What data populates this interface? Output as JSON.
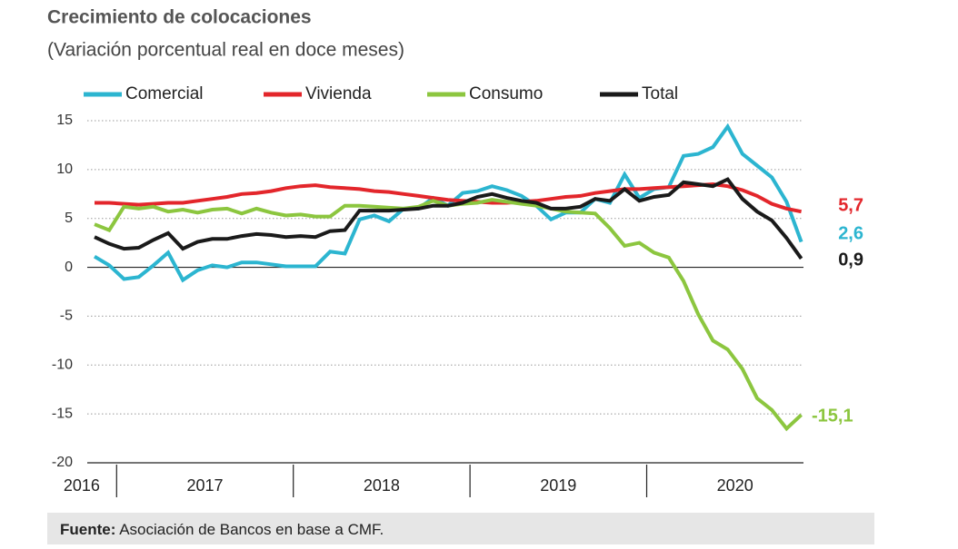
{
  "chart_data": {
    "type": "line",
    "title": "Crecimiento de colocaciones",
    "subtitle": "(Variación porcentual real en doce meses)",
    "categories": [
      "2016",
      null,
      null,
      null,
      null,
      null,
      null,
      null,
      "2017",
      null,
      null,
      null,
      null,
      null,
      null,
      null,
      null,
      null,
      null,
      null,
      "2018",
      null,
      null,
      null,
      null,
      null,
      null,
      null,
      null,
      null,
      null,
      null,
      "2019",
      null,
      null,
      null,
      null,
      null,
      null,
      null,
      null,
      null,
      null,
      null,
      "2020",
      null,
      null,
      null,
      null
    ],
    "ylim": [
      -20,
      15
    ],
    "yticks": [
      -20,
      -15,
      -10,
      -5,
      0,
      5,
      10,
      15
    ],
    "grid": true,
    "series": [
      {
        "name": "Comercial",
        "color": "#2cb5d0",
        "values": [
          1.1,
          0.2,
          -1.2,
          -1.0,
          0.2,
          1.5,
          -1.3,
          -0.3,
          0.2,
          0.0,
          0.5,
          0.5,
          0.3,
          0.1,
          0.1,
          0.1,
          1.6,
          1.4,
          4.9,
          5.3,
          4.7,
          6.0,
          6.0,
          7.1,
          6.3,
          7.6,
          7.8,
          8.3,
          7.9,
          7.3,
          6.3,
          4.9,
          5.6,
          5.6,
          7.0,
          6.6,
          9.5,
          7.1,
          8.0,
          8.2,
          11.4,
          11.6,
          12.3,
          14.4,
          11.6,
          10.4,
          9.2,
          6.7,
          2.6
        ],
        "value_labels": [
          null,
          null,
          null,
          null,
          null,
          null,
          null,
          null,
          null,
          null,
          null,
          null,
          null,
          null,
          null,
          null,
          null,
          null,
          null,
          null,
          null,
          null,
          null,
          null,
          null,
          null,
          null,
          null,
          null,
          null,
          null,
          null,
          null,
          null,
          null,
          null,
          null,
          null,
          null,
          null,
          null,
          null,
          null,
          null,
          null,
          null,
          null,
          null,
          "2,6"
        ]
      },
      {
        "name": "Vivienda",
        "color": "#e3262b",
        "values": [
          6.6,
          6.6,
          6.5,
          6.4,
          6.5,
          6.6,
          6.6,
          6.8,
          7.0,
          7.2,
          7.5,
          7.6,
          7.8,
          8.1,
          8.3,
          8.4,
          8.2,
          8.1,
          8.0,
          7.8,
          7.7,
          7.5,
          7.3,
          7.1,
          6.9,
          6.8,
          6.7,
          6.6,
          6.6,
          6.7,
          6.8,
          7.0,
          7.2,
          7.3,
          7.6,
          7.8,
          8.0,
          8.0,
          8.1,
          8.2,
          8.3,
          8.4,
          8.5,
          8.3,
          7.9,
          7.3,
          6.5,
          6.0,
          5.7
        ],
        "value_labels": [
          null,
          null,
          null,
          null,
          null,
          null,
          null,
          null,
          null,
          null,
          null,
          null,
          null,
          null,
          null,
          null,
          null,
          null,
          null,
          null,
          null,
          null,
          null,
          null,
          null,
          null,
          null,
          null,
          null,
          null,
          null,
          null,
          null,
          null,
          null,
          null,
          null,
          null,
          null,
          null,
          null,
          null,
          null,
          null,
          null,
          null,
          null,
          null,
          "5,7"
        ]
      },
      {
        "name": "Consumo",
        "color": "#8cc63f",
        "values": [
          4.4,
          3.8,
          6.2,
          6.0,
          6.2,
          5.7,
          5.9,
          5.6,
          5.9,
          6.0,
          5.5,
          6.0,
          5.6,
          5.3,
          5.4,
          5.2,
          5.2,
          6.3,
          6.3,
          6.2,
          6.1,
          6.0,
          6.2,
          6.8,
          6.3,
          6.5,
          6.6,
          6.9,
          6.7,
          6.5,
          6.3,
          6.0,
          5.7,
          5.6,
          5.5,
          4.0,
          2.2,
          2.5,
          1.5,
          1.0,
          -1.4,
          -4.8,
          -7.5,
          -8.4,
          -10.4,
          -13.4,
          -14.6,
          -16.5,
          -15.1
        ],
        "value_labels": [
          null,
          null,
          null,
          null,
          null,
          null,
          null,
          null,
          null,
          null,
          null,
          null,
          null,
          null,
          null,
          null,
          null,
          null,
          null,
          null,
          null,
          null,
          null,
          null,
          null,
          null,
          null,
          null,
          null,
          null,
          null,
          null,
          null,
          null,
          null,
          null,
          null,
          null,
          null,
          null,
          null,
          null,
          null,
          null,
          null,
          null,
          null,
          null,
          "-15,1"
        ]
      },
      {
        "name": "Total",
        "color": "#1a1a1a",
        "values": [
          3.1,
          2.4,
          1.9,
          2.0,
          2.8,
          3.5,
          1.9,
          2.6,
          2.9,
          2.9,
          3.2,
          3.4,
          3.3,
          3.1,
          3.2,
          3.1,
          3.7,
          3.8,
          5.8,
          5.8,
          5.8,
          5.9,
          6.0,
          6.3,
          6.3,
          6.6,
          7.2,
          7.5,
          7.1,
          6.8,
          6.6,
          6.0,
          6.0,
          6.2,
          7.0,
          6.8,
          8.0,
          6.8,
          7.2,
          7.4,
          8.7,
          8.5,
          8.3,
          9.0,
          7.0,
          5.7,
          4.8,
          3.0,
          0.9
        ],
        "value_labels": [
          null,
          null,
          null,
          null,
          null,
          null,
          null,
          null,
          null,
          null,
          null,
          null,
          null,
          null,
          null,
          null,
          null,
          null,
          null,
          null,
          null,
          null,
          null,
          null,
          null,
          null,
          null,
          null,
          null,
          null,
          null,
          null,
          null,
          null,
          null,
          null,
          null,
          null,
          null,
          null,
          null,
          null,
          null,
          null,
          null,
          null,
          null,
          null,
          "0,9"
        ]
      }
    ],
    "source": {
      "label": "Fuente:",
      "text": "Asociación de Bancos en base a CMF."
    }
  }
}
